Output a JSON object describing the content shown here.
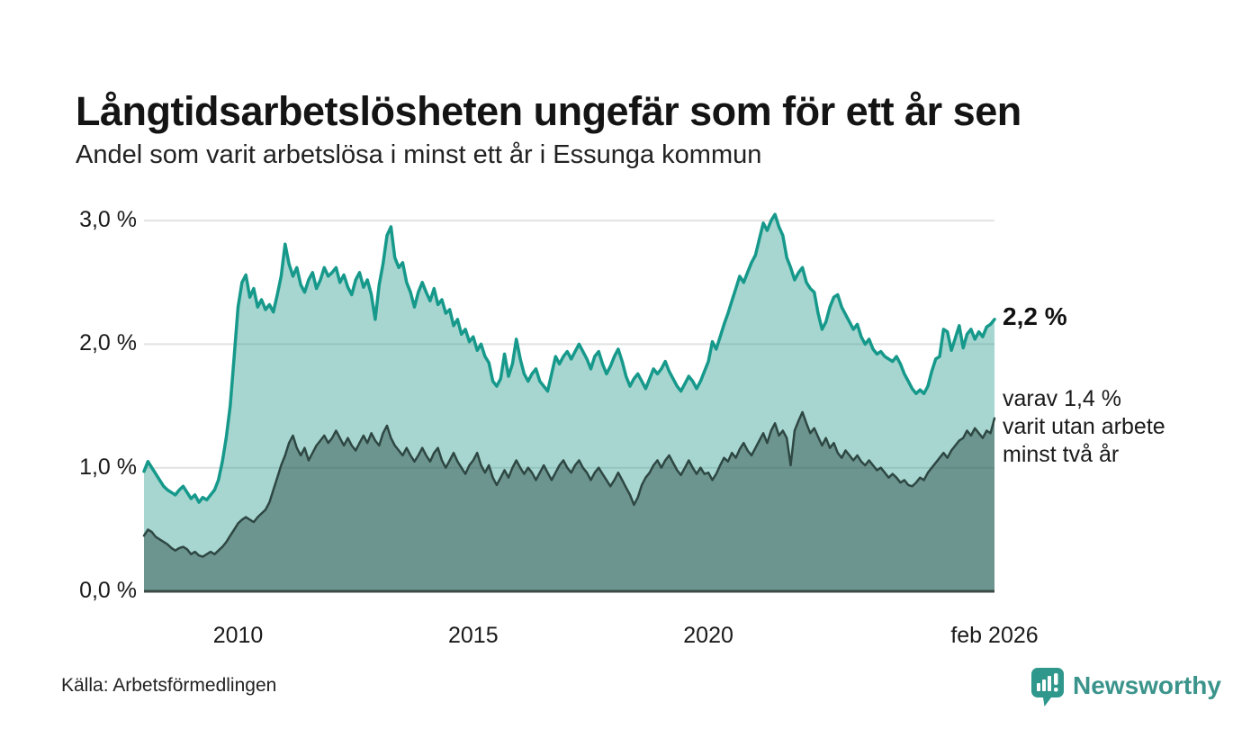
{
  "header": {
    "title": "Långtidsarbetslösheten ungefär som för ett år sen",
    "subtitle": "Andel som varit arbetslösa i minst ett år i Essunga kommun"
  },
  "chart_data": {
    "type": "area",
    "title": "Långtidsarbetslösheten ungefär som för ett år sen",
    "subtitle": "Andel som varit arbetslösa i minst ett år i Essunga kommun",
    "unit": "%",
    "frequency": "monthly",
    "x_start": "2008-01",
    "x_end": "2026-02",
    "ylim": [
      0,
      3.1
    ],
    "grid": true,
    "y_ticks": [
      {
        "label": "3,0 %",
        "value": 3
      },
      {
        "label": "2,0 %",
        "value": 2
      },
      {
        "label": "1,0 %",
        "value": 1
      },
      {
        "label": "0,0 %",
        "value": 0
      }
    ],
    "x_ticks": [
      {
        "label": "2010",
        "index": 24
      },
      {
        "label": "2015",
        "index": 84
      },
      {
        "label": "2020",
        "index": 144
      },
      {
        "label": "feb 2026",
        "index": 217
      }
    ],
    "series": [
      {
        "name": "Arbetslösa minst ett år",
        "color": "#16998b",
        "fill": "rgba(23,146,132,0.38)",
        "stroke_width": 3.5,
        "latest_label": "2,2 %",
        "values": [
          0.97,
          1.05,
          1.0,
          0.95,
          0.9,
          0.85,
          0.82,
          0.8,
          0.78,
          0.82,
          0.85,
          0.8,
          0.75,
          0.78,
          0.72,
          0.76,
          0.74,
          0.78,
          0.82,
          0.9,
          1.05,
          1.25,
          1.5,
          1.9,
          2.3,
          2.5,
          2.56,
          2.38,
          2.45,
          2.3,
          2.36,
          2.28,
          2.32,
          2.26,
          2.4,
          2.55,
          2.81,
          2.65,
          2.55,
          2.62,
          2.48,
          2.42,
          2.52,
          2.58,
          2.45,
          2.52,
          2.62,
          2.55,
          2.58,
          2.62,
          2.5,
          2.56,
          2.46,
          2.4,
          2.52,
          2.58,
          2.46,
          2.52,
          2.4,
          2.2,
          2.48,
          2.65,
          2.88,
          2.95,
          2.7,
          2.62,
          2.66,
          2.5,
          2.42,
          2.3,
          2.42,
          2.5,
          2.42,
          2.35,
          2.45,
          2.32,
          2.36,
          2.25,
          2.28,
          2.15,
          2.2,
          2.08,
          2.12,
          2.02,
          2.06,
          1.95,
          2.0,
          1.9,
          1.85,
          1.7,
          1.66,
          1.72,
          1.92,
          1.74,
          1.84,
          2.04,
          1.88,
          1.76,
          1.7,
          1.76,
          1.8,
          1.7,
          1.66,
          1.62,
          1.76,
          1.9,
          1.84,
          1.9,
          1.94,
          1.88,
          1.94,
          2.0,
          1.94,
          1.88,
          1.8,
          1.9,
          1.94,
          1.84,
          1.76,
          1.82,
          1.9,
          1.96,
          1.86,
          1.74,
          1.66,
          1.72,
          1.76,
          1.7,
          1.64,
          1.72,
          1.8,
          1.76,
          1.8,
          1.86,
          1.78,
          1.72,
          1.66,
          1.62,
          1.68,
          1.74,
          1.7,
          1.64,
          1.7,
          1.78,
          1.86,
          2.02,
          1.96,
          2.06,
          2.16,
          2.25,
          2.35,
          2.45,
          2.55,
          2.5,
          2.58,
          2.66,
          2.72,
          2.85,
          2.98,
          2.92,
          3.0,
          3.05,
          2.95,
          2.88,
          2.7,
          2.62,
          2.52,
          2.58,
          2.62,
          2.5,
          2.45,
          2.42,
          2.25,
          2.12,
          2.18,
          2.3,
          2.38,
          2.4,
          2.3,
          2.24,
          2.18,
          2.12,
          2.16,
          2.06,
          2.0,
          2.04,
          1.96,
          1.92,
          1.94,
          1.9,
          1.88,
          1.86,
          1.9,
          1.84,
          1.76,
          1.7,
          1.64,
          1.6,
          1.63,
          1.6,
          1.66,
          1.78,
          1.88,
          1.9,
          2.12,
          2.1,
          1.95,
          2.05,
          2.15,
          1.97,
          2.08,
          2.12,
          2.04,
          2.1,
          2.06,
          2.14,
          2.16,
          2.2
        ]
      },
      {
        "name": "Arbetslösa minst två år",
        "color": "#2e4743",
        "fill": "rgba(40,72,64,0.45)",
        "stroke_width": 2.5,
        "latest_label": "1,4 %",
        "values": [
          0.45,
          0.5,
          0.48,
          0.44,
          0.42,
          0.4,
          0.38,
          0.35,
          0.33,
          0.35,
          0.36,
          0.34,
          0.3,
          0.32,
          0.29,
          0.28,
          0.3,
          0.32,
          0.3,
          0.33,
          0.36,
          0.4,
          0.45,
          0.5,
          0.55,
          0.58,
          0.6,
          0.58,
          0.56,
          0.6,
          0.63,
          0.66,
          0.72,
          0.82,
          0.92,
          1.02,
          1.1,
          1.2,
          1.26,
          1.16,
          1.1,
          1.16,
          1.06,
          1.12,
          1.18,
          1.22,
          1.26,
          1.2,
          1.24,
          1.3,
          1.24,
          1.18,
          1.24,
          1.18,
          1.14,
          1.2,
          1.26,
          1.2,
          1.28,
          1.22,
          1.18,
          1.28,
          1.34,
          1.24,
          1.18,
          1.14,
          1.1,
          1.16,
          1.1,
          1.05,
          1.1,
          1.16,
          1.1,
          1.05,
          1.12,
          1.16,
          1.06,
          1.0,
          1.06,
          1.12,
          1.05,
          1.0,
          0.95,
          1.02,
          1.06,
          1.12,
          1.02,
          0.96,
          1.02,
          0.92,
          0.86,
          0.92,
          0.98,
          0.92,
          1.0,
          1.06,
          1.0,
          0.95,
          1.0,
          0.96,
          0.9,
          0.96,
          1.02,
          0.96,
          0.9,
          0.96,
          1.02,
          1.06,
          1.0,
          0.96,
          1.02,
          1.06,
          1.0,
          0.96,
          0.9,
          0.96,
          1.0,
          0.95,
          0.9,
          0.85,
          0.9,
          0.96,
          0.9,
          0.84,
          0.78,
          0.7,
          0.76,
          0.86,
          0.92,
          0.96,
          1.02,
          1.06,
          1.0,
          1.06,
          1.1,
          1.04,
          0.98,
          0.94,
          1.0,
          1.06,
          1.0,
          0.95,
          1.0,
          0.95,
          0.96,
          0.9,
          0.95,
          1.02,
          1.08,
          1.05,
          1.12,
          1.08,
          1.15,
          1.2,
          1.14,
          1.1,
          1.16,
          1.22,
          1.28,
          1.2,
          1.3,
          1.36,
          1.26,
          1.3,
          1.24,
          1.02,
          1.3,
          1.38,
          1.45,
          1.36,
          1.28,
          1.32,
          1.25,
          1.18,
          1.24,
          1.16,
          1.2,
          1.12,
          1.08,
          1.14,
          1.1,
          1.06,
          1.1,
          1.05,
          1.02,
          1.06,
          1.02,
          0.98,
          1.0,
          0.96,
          0.92,
          0.95,
          0.92,
          0.88,
          0.9,
          0.86,
          0.85,
          0.88,
          0.92,
          0.9,
          0.96,
          1.0,
          1.04,
          1.08,
          1.12,
          1.08,
          1.14,
          1.18,
          1.22,
          1.24,
          1.3,
          1.26,
          1.32,
          1.28,
          1.24,
          1.3,
          1.28,
          1.4
        ]
      }
    ]
  },
  "annotations": {
    "latest_value": "2,2 %",
    "sub_note": "varav 1,4 %\nvarit utan arbete\nminst två år"
  },
  "footer": {
    "source": "Källa: Arbetsförmedlingen",
    "brand": "Newsworthy"
  },
  "colors": {
    "accent_line": "#16998b",
    "accent_fill_light": "#a8d8d0",
    "dark_fill": "#6f9b94",
    "dark_line": "#2e4743",
    "gridline": "#e2e2e2",
    "axis": "#3a4a46",
    "brand_teal": "#3a948b"
  }
}
